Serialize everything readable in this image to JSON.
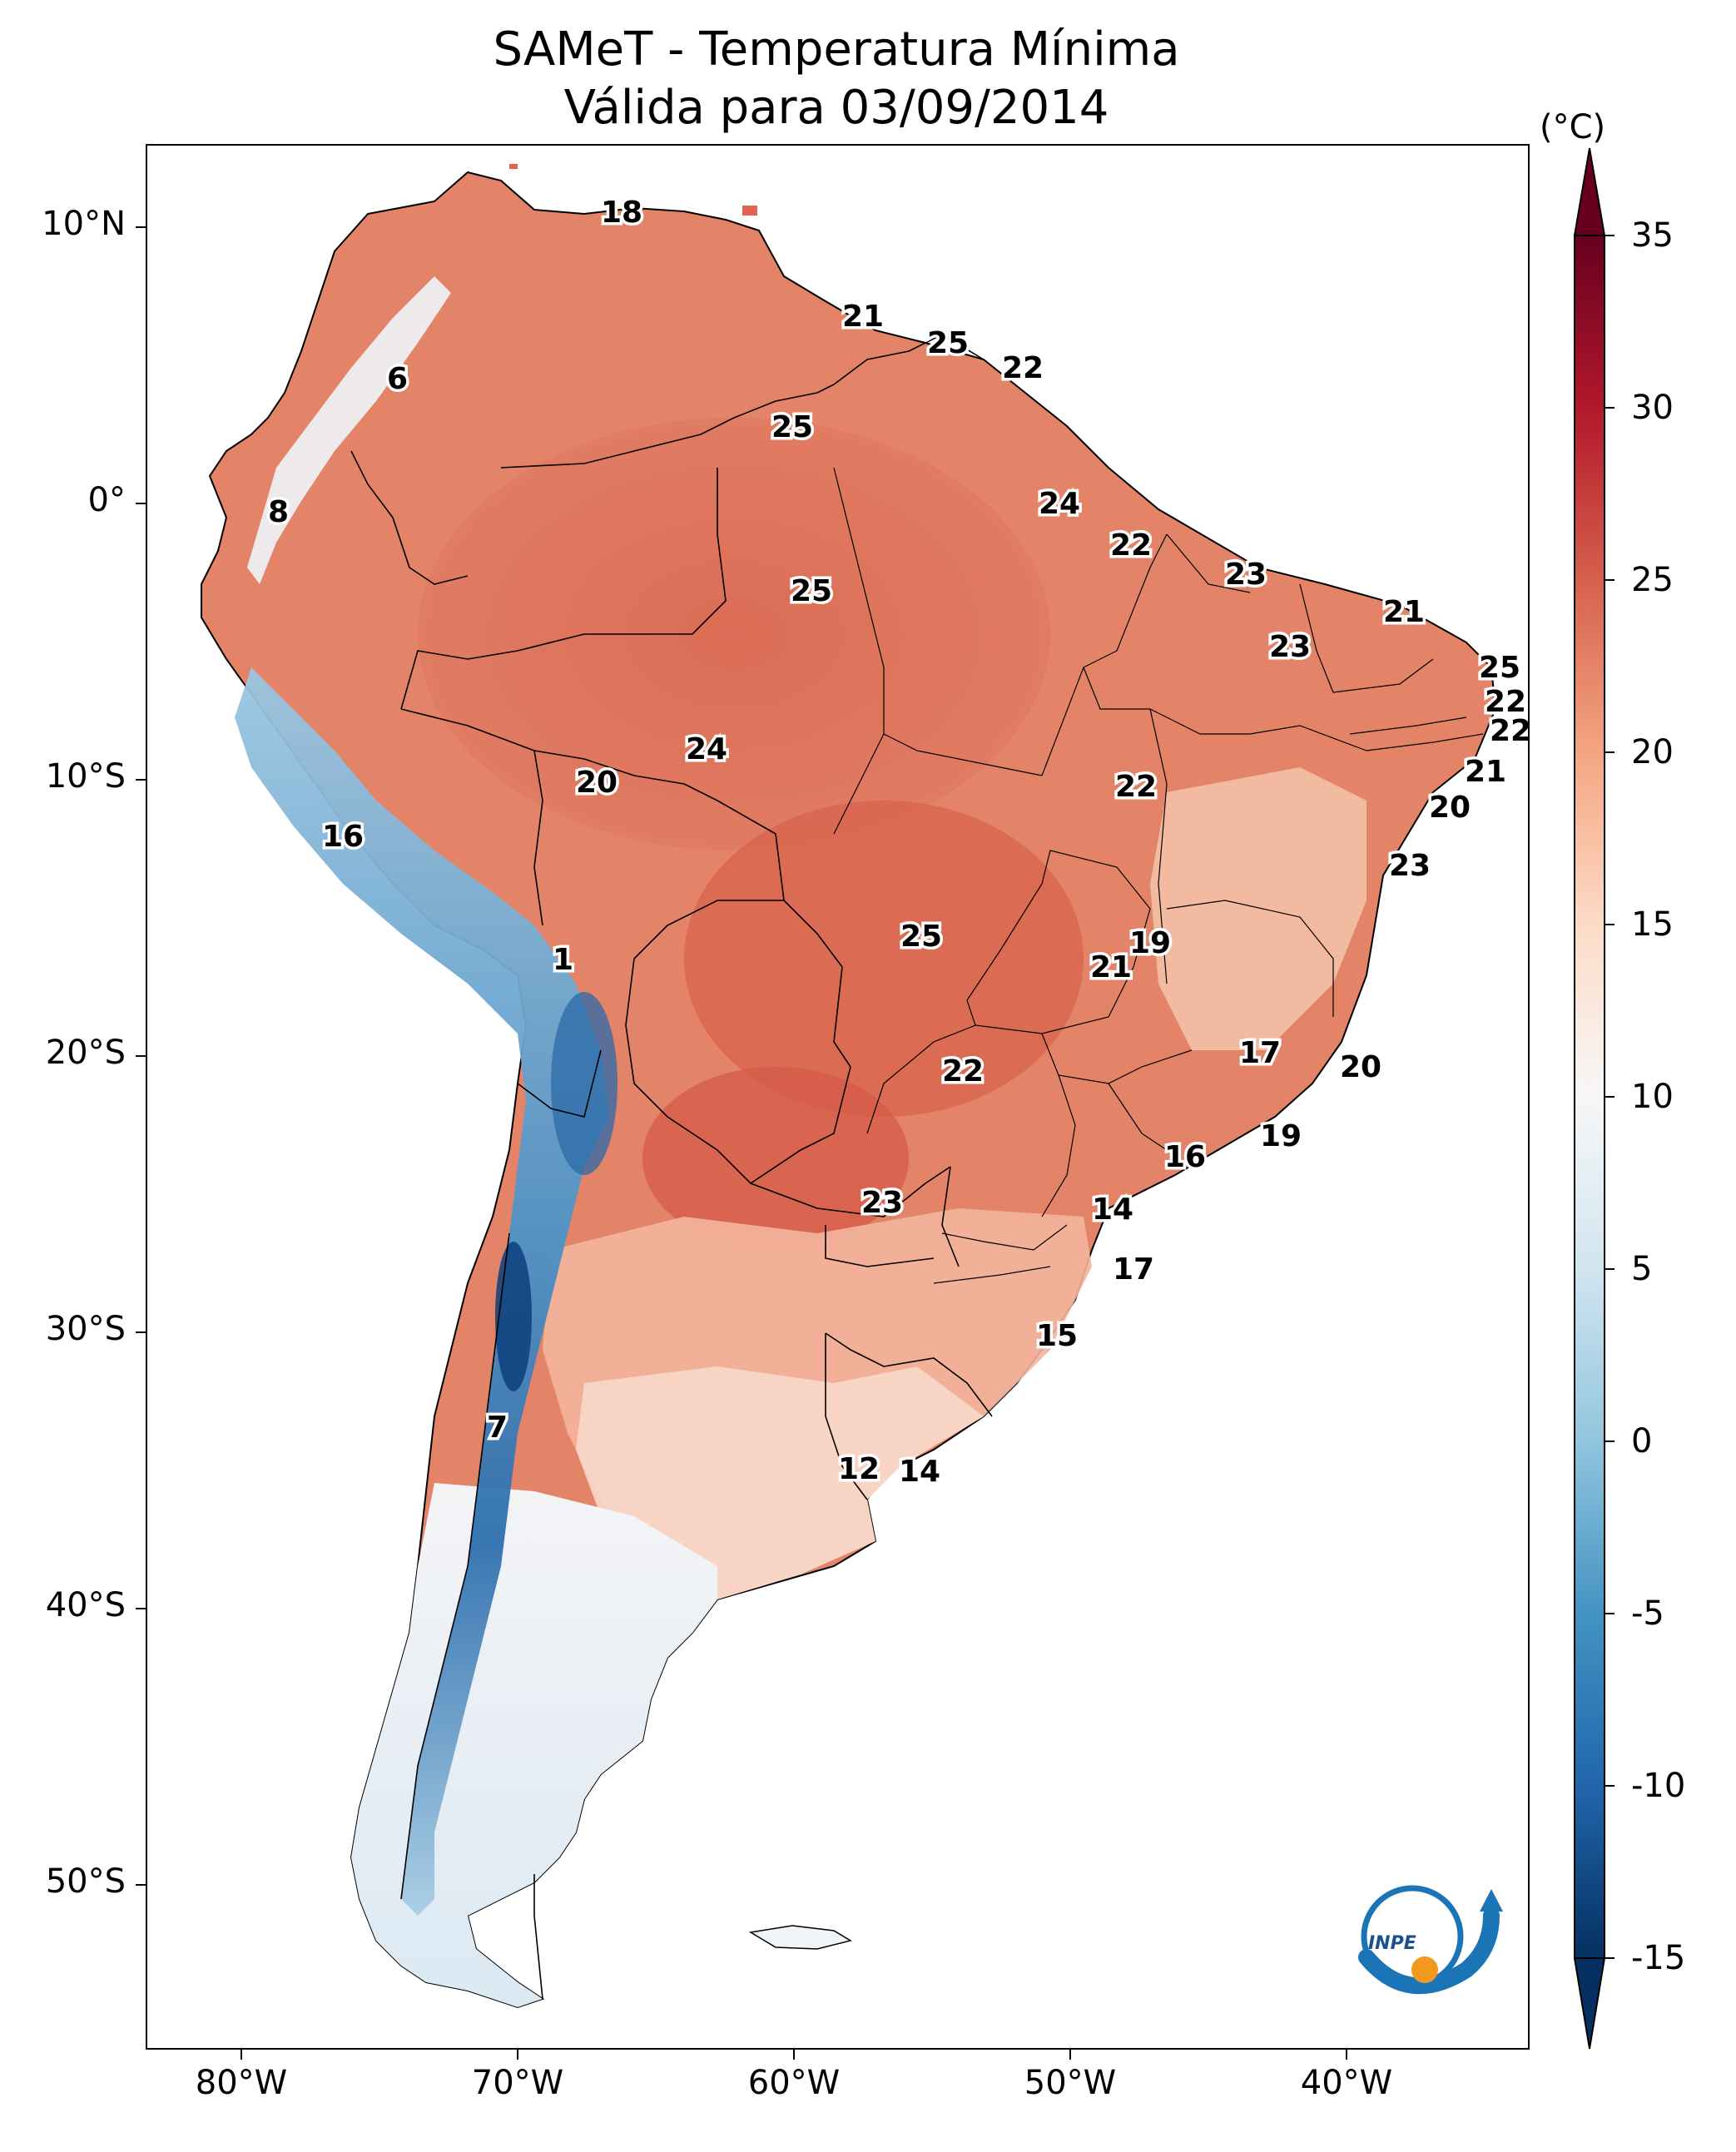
{
  "title": {
    "line1": "SAMeT - Temperatura Mínima",
    "line2": "Válida para 03/09/2014"
  },
  "axes": {
    "lat_labels": [
      "10°N",
      "0°",
      "10°S",
      "20°S",
      "30°S",
      "40°S",
      "50°S"
    ],
    "lon_labels": [
      "80°W",
      "70°W",
      "60°W",
      "50°W",
      "40°W"
    ]
  },
  "colorbar": {
    "unit": "(°C)",
    "min": -15,
    "max": 35,
    "tick_labels": [
      "35",
      "30",
      "25",
      "20",
      "15",
      "10",
      "5",
      "0",
      "-5",
      "-10",
      "-15"
    ],
    "colors": [
      "#67001f",
      "#b2182b",
      "#d6604d",
      "#f4a582",
      "#fddbc7",
      "#f7f7f7",
      "#d1e5f0",
      "#92c5de",
      "#4393c3",
      "#2166ac",
      "#053061"
    ]
  },
  "map_labels": [
    "18",
    "6",
    "21",
    "25",
    "22",
    "25",
    "8",
    "24",
    "22",
    "23",
    "25",
    "21",
    "23",
    "25",
    "22",
    "22",
    "24",
    "20",
    "22",
    "21",
    "16",
    "20",
    "23",
    "19",
    "25",
    "1",
    "21",
    "17",
    "20",
    "22",
    "19",
    "16",
    "23",
    "14",
    "17",
    "15",
    "7",
    "12",
    "14"
  ],
  "logo": {
    "text": "INPE"
  }
}
